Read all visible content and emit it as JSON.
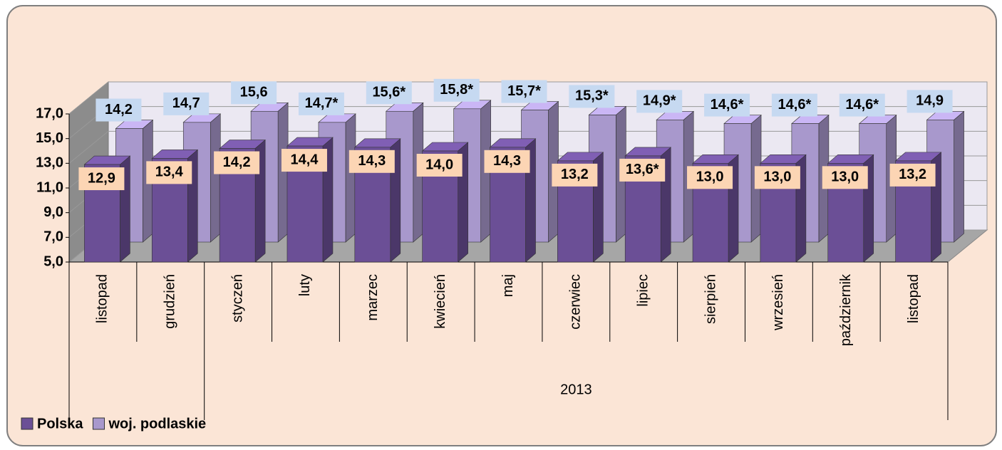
{
  "chart_data": {
    "type": "bar3d",
    "categories": [
      "listopad",
      "grudzień",
      "styczeń",
      "luty",
      "marzec",
      "kwiecień",
      "maj",
      "czerwiec",
      "lipiec",
      "sierpień",
      "wrzesień",
      "październik",
      "listopad"
    ],
    "groups": [
      {
        "label": "2013",
        "first": 2,
        "last": 12
      }
    ],
    "series": [
      {
        "name": "Polska",
        "color": "#6b4f96",
        "label_color": "#fcd5b4",
        "values": [
          12.9,
          13.4,
          14.2,
          14.4,
          14.3,
          14.0,
          14.3,
          13.2,
          13.6,
          13.0,
          13.0,
          13.0,
          13.2
        ],
        "value_labels": [
          "12,9",
          "13,4",
          "14,2",
          "14,4",
          "14,3",
          "14,0",
          "14,3",
          "13,2",
          "13,6*",
          "13,0",
          "13,0",
          "13,0",
          "13,2"
        ]
      },
      {
        "name": "woj. podlaskie",
        "color": "#a898cc",
        "label_color": "#c6d9f1",
        "values": [
          14.2,
          14.7,
          15.6,
          14.7,
          15.6,
          15.8,
          15.7,
          15.3,
          14.9,
          14.6,
          14.6,
          14.6,
          14.9
        ],
        "value_labels": [
          "14,2",
          "14,7",
          "15,6",
          "14,7*",
          "15,6*",
          "15,8*",
          "15,7*",
          "15,3*",
          "14,9*",
          "14,6*",
          "14,6*",
          "14,6*",
          "14,9"
        ]
      }
    ],
    "ylim": [
      5,
      17
    ],
    "yticks": [
      {
        "value": 5,
        "label": "5,0"
      },
      {
        "value": 7,
        "label": "7,0"
      },
      {
        "value": 9,
        "label": "9,0"
      },
      {
        "value": 11,
        "label": "11,0"
      },
      {
        "value": 13,
        "label": "13,0"
      },
      {
        "value": 15,
        "label": "15,0"
      },
      {
        "value": 17,
        "label": "17,0"
      }
    ],
    "grid": true,
    "legend": "bottom-left"
  }
}
